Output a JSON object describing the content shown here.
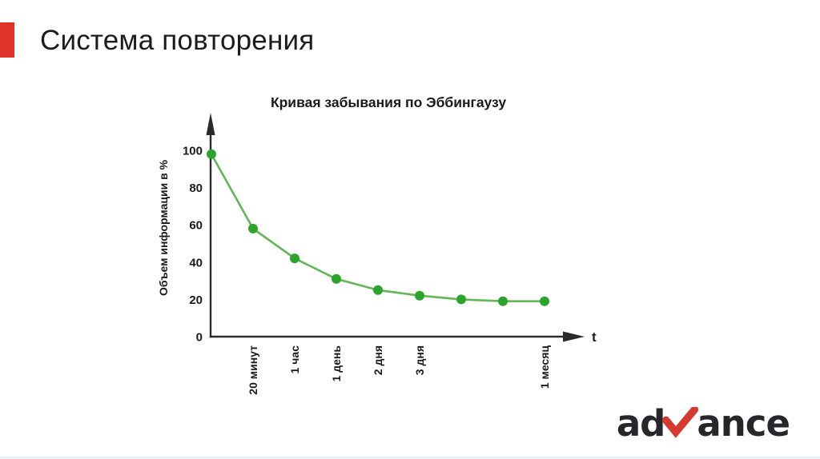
{
  "slide": {
    "title": "Система повторения",
    "accent_color": "#e0342b"
  },
  "chart_data": {
    "type": "line",
    "title": "Кривая забывания по Эббингаузу",
    "ylabel": "Объем информации в %",
    "xlabel": "t",
    "yticks": [
      0,
      20,
      40,
      60,
      80,
      100
    ],
    "ylim": [
      0,
      110
    ],
    "grid": false,
    "legend_position": "none",
    "x_labels": [
      "",
      "20 минут",
      "1 час",
      "1 день",
      "2 дня",
      "3 дня",
      "",
      "",
      "1 месяц"
    ],
    "values": [
      98,
      58,
      42,
      31,
      25,
      22,
      20,
      19,
      19
    ],
    "line_color": "#63b656",
    "point_color": "#2ca42c",
    "axis_color": "#2a2a2a",
    "label_color": "#1a1a1a"
  },
  "logo": {
    "prefix": "ad",
    "suffix": "ance",
    "check_color": "#d6392e",
    "text_color": "#26262b"
  }
}
